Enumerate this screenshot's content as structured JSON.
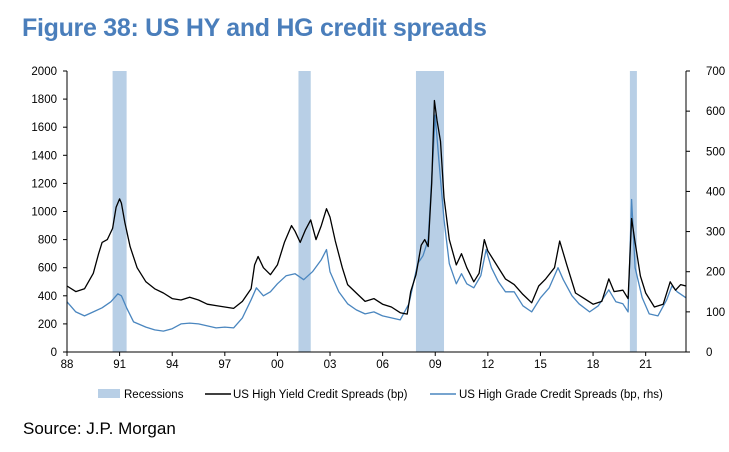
{
  "page": {
    "title": "Figure 38: US HY and HG credit spreads",
    "source": "Source: J.P. Morgan"
  },
  "colors": {
    "title": "#4a7ebb",
    "hy_line": "#000000",
    "hg_line": "#4a86bf",
    "recession": "#b8cfe6",
    "axis": "#000000"
  },
  "chart_data": {
    "type": "line",
    "grid": false,
    "legend_position": "bottom",
    "x_tick_labels": [
      "88",
      "91",
      "94",
      "97",
      "00",
      "03",
      "06",
      "09",
      "12",
      "15",
      "18",
      "21"
    ],
    "x_ticks": [
      1988,
      1991,
      1994,
      1997,
      2000,
      2003,
      2006,
      2009,
      2012,
      2015,
      2018,
      2021
    ],
    "xlim": [
      1988,
      2023.3
    ],
    "y_left": {
      "lim": [
        0,
        2000
      ],
      "ticks": [
        0,
        200,
        400,
        600,
        800,
        1000,
        1200,
        1400,
        1600,
        1800,
        2000
      ]
    },
    "y_right": {
      "lim": [
        0,
        700
      ],
      "ticks": [
        0,
        100,
        200,
        300,
        400,
        500,
        600,
        700
      ]
    },
    "recessions": {
      "name": "Recessions",
      "periods": [
        [
          1990.6,
          1991.4
        ],
        [
          2001.2,
          2001.9
        ],
        [
          2007.9,
          2009.5
        ],
        [
          2020.1,
          2020.5
        ]
      ]
    },
    "series": [
      {
        "name": "US High Yield Credit Spreads  (bp)",
        "axis": "left",
        "points": [
          [
            1988.0,
            470
          ],
          [
            1988.5,
            430
          ],
          [
            1989.0,
            450
          ],
          [
            1989.5,
            560
          ],
          [
            1989.8,
            700
          ],
          [
            1990.0,
            780
          ],
          [
            1990.3,
            800
          ],
          [
            1990.6,
            880
          ],
          [
            1990.8,
            1030
          ],
          [
            1991.0,
            1090
          ],
          [
            1991.1,
            1060
          ],
          [
            1991.3,
            920
          ],
          [
            1991.6,
            750
          ],
          [
            1992.0,
            600
          ],
          [
            1992.5,
            500
          ],
          [
            1993.0,
            450
          ],
          [
            1993.5,
            420
          ],
          [
            1994.0,
            380
          ],
          [
            1994.5,
            370
          ],
          [
            1995.0,
            390
          ],
          [
            1995.5,
            370
          ],
          [
            1996.0,
            340
          ],
          [
            1996.5,
            330
          ],
          [
            1997.0,
            320
          ],
          [
            1997.5,
            310
          ],
          [
            1998.0,
            360
          ],
          [
            1998.5,
            450
          ],
          [
            1998.7,
            620
          ],
          [
            1998.9,
            680
          ],
          [
            1999.2,
            600
          ],
          [
            1999.6,
            550
          ],
          [
            2000.0,
            620
          ],
          [
            2000.4,
            780
          ],
          [
            2000.8,
            900
          ],
          [
            2001.0,
            860
          ],
          [
            2001.3,
            780
          ],
          [
            2001.6,
            870
          ],
          [
            2001.9,
            940
          ],
          [
            2002.2,
            800
          ],
          [
            2002.5,
            900
          ],
          [
            2002.8,
            1020
          ],
          [
            2003.0,
            960
          ],
          [
            2003.3,
            790
          ],
          [
            2003.7,
            600
          ],
          [
            2004.0,
            480
          ],
          [
            2004.5,
            420
          ],
          [
            2005.0,
            360
          ],
          [
            2005.5,
            380
          ],
          [
            2006.0,
            340
          ],
          [
            2006.5,
            320
          ],
          [
            2007.0,
            280
          ],
          [
            2007.4,
            270
          ],
          [
            2007.6,
            430
          ],
          [
            2007.9,
            550
          ],
          [
            2008.2,
            760
          ],
          [
            2008.4,
            800
          ],
          [
            2008.6,
            750
          ],
          [
            2008.8,
            1200
          ],
          [
            2008.95,
            1790
          ],
          [
            2009.1,
            1650
          ],
          [
            2009.3,
            1500
          ],
          [
            2009.5,
            1100
          ],
          [
            2009.8,
            800
          ],
          [
            2010.2,
            620
          ],
          [
            2010.5,
            700
          ],
          [
            2010.8,
            600
          ],
          [
            2011.2,
            500
          ],
          [
            2011.5,
            560
          ],
          [
            2011.8,
            800
          ],
          [
            2012.0,
            720
          ],
          [
            2012.5,
            620
          ],
          [
            2013.0,
            520
          ],
          [
            2013.5,
            480
          ],
          [
            2014.0,
            410
          ],
          [
            2014.5,
            350
          ],
          [
            2014.9,
            470
          ],
          [
            2015.3,
            520
          ],
          [
            2015.8,
            600
          ],
          [
            2016.1,
            790
          ],
          [
            2016.5,
            620
          ],
          [
            2017.0,
            420
          ],
          [
            2017.5,
            380
          ],
          [
            2018.0,
            340
          ],
          [
            2018.5,
            360
          ],
          [
            2018.9,
            520
          ],
          [
            2019.2,
            430
          ],
          [
            2019.7,
            440
          ],
          [
            2020.0,
            380
          ],
          [
            2020.2,
            950
          ],
          [
            2020.4,
            780
          ],
          [
            2020.7,
            540
          ],
          [
            2021.0,
            420
          ],
          [
            2021.5,
            320
          ],
          [
            2022.0,
            340
          ],
          [
            2022.4,
            500
          ],
          [
            2022.7,
            440
          ],
          [
            2023.0,
            480
          ],
          [
            2023.3,
            470
          ]
        ]
      },
      {
        "name": "US High Grade Credit Spreads (bp, rhs)",
        "axis": "right",
        "points": [
          [
            1988.0,
            125
          ],
          [
            1988.5,
            100
          ],
          [
            1989.0,
            90
          ],
          [
            1989.5,
            100
          ],
          [
            1990.0,
            110
          ],
          [
            1990.5,
            125
          ],
          [
            1990.9,
            145
          ],
          [
            1991.1,
            140
          ],
          [
            1991.4,
            110
          ],
          [
            1991.8,
            75
          ],
          [
            1992.5,
            62
          ],
          [
            1993.0,
            55
          ],
          [
            1993.5,
            52
          ],
          [
            1994.0,
            58
          ],
          [
            1994.5,
            70
          ],
          [
            1995.0,
            72
          ],
          [
            1995.5,
            70
          ],
          [
            1996.0,
            65
          ],
          [
            1996.5,
            60
          ],
          [
            1997.0,
            62
          ],
          [
            1997.5,
            60
          ],
          [
            1998.0,
            85
          ],
          [
            1998.5,
            130
          ],
          [
            1998.8,
            160
          ],
          [
            1999.2,
            140
          ],
          [
            1999.6,
            150
          ],
          [
            2000.0,
            170
          ],
          [
            2000.5,
            190
          ],
          [
            2001.0,
            195
          ],
          [
            2001.5,
            180
          ],
          [
            2002.0,
            200
          ],
          [
            2002.5,
            230
          ],
          [
            2002.8,
            255
          ],
          [
            2003.0,
            200
          ],
          [
            2003.5,
            150
          ],
          [
            2004.0,
            120
          ],
          [
            2004.5,
            105
          ],
          [
            2005.0,
            95
          ],
          [
            2005.5,
            100
          ],
          [
            2006.0,
            90
          ],
          [
            2006.5,
            85
          ],
          [
            2007.0,
            80
          ],
          [
            2007.5,
            120
          ],
          [
            2008.0,
            220
          ],
          [
            2008.3,
            240
          ],
          [
            2008.6,
            280
          ],
          [
            2008.9,
            510
          ],
          [
            2009.0,
            590
          ],
          [
            2009.2,
            480
          ],
          [
            2009.5,
            330
          ],
          [
            2009.8,
            220
          ],
          [
            2010.2,
            170
          ],
          [
            2010.5,
            195
          ],
          [
            2010.8,
            170
          ],
          [
            2011.2,
            160
          ],
          [
            2011.6,
            190
          ],
          [
            2011.9,
            255
          ],
          [
            2012.2,
            210
          ],
          [
            2012.6,
            175
          ],
          [
            2013.0,
            150
          ],
          [
            2013.5,
            150
          ],
          [
            2014.0,
            115
          ],
          [
            2014.5,
            100
          ],
          [
            2015.0,
            135
          ],
          [
            2015.5,
            160
          ],
          [
            2016.0,
            210
          ],
          [
            2016.3,
            180
          ],
          [
            2016.8,
            140
          ],
          [
            2017.2,
            120
          ],
          [
            2017.8,
            100
          ],
          [
            2018.3,
            115
          ],
          [
            2018.9,
            155
          ],
          [
            2019.3,
            125
          ],
          [
            2019.7,
            120
          ],
          [
            2020.0,
            100
          ],
          [
            2020.2,
            380
          ],
          [
            2020.4,
            210
          ],
          [
            2020.8,
            135
          ],
          [
            2021.2,
            95
          ],
          [
            2021.7,
            90
          ],
          [
            2022.2,
            130
          ],
          [
            2022.5,
            165
          ],
          [
            2022.8,
            150
          ],
          [
            2023.3,
            135
          ]
        ]
      }
    ]
  }
}
